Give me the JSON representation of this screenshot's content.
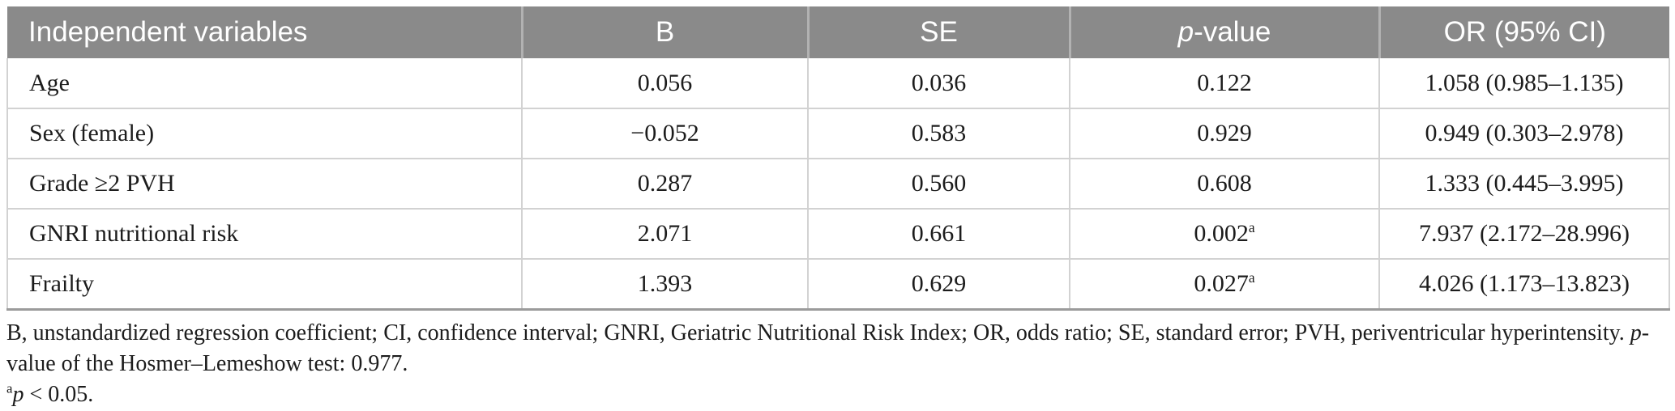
{
  "colors": {
    "header-bg": "#8a8a8a",
    "header-divider": "#b2b2b2",
    "cell-border": "#d2d2d2",
    "table-bottom-border": "#9b9b9b",
    "text": "#1c1c1c",
    "header-text": "#ffffff"
  },
  "table": {
    "header": {
      "variable": "Independent variables",
      "b": "B",
      "se": "SE",
      "p_italic": "p",
      "p_rest": "-value",
      "or_ci": "OR (95% CI)"
    },
    "rows": [
      {
        "variable": "Age",
        "b": "0.056",
        "se": "0.036",
        "p": "0.122",
        "p_sup": "",
        "or_ci": "1.058 (0.985–1.135)"
      },
      {
        "variable": "Sex (female)",
        "b": "−0.052",
        "se": "0.583",
        "p": "0.929",
        "p_sup": "",
        "or_ci": "0.949 (0.303–2.978)"
      },
      {
        "variable": "Grade ≥2 PVH",
        "b": "0.287",
        "se": "0.560",
        "p": "0.608",
        "p_sup": "",
        "or_ci": "1.333 (0.445–3.995)"
      },
      {
        "variable": "GNRI nutritional risk",
        "b": "2.071",
        "se": "0.661",
        "p": "0.002",
        "p_sup": "a",
        "or_ci": "7.937 (2.172–28.996)"
      },
      {
        "variable": "Frailty",
        "b": "1.393",
        "se": "0.629",
        "p": "0.027",
        "p_sup": "a",
        "or_ci": "4.026 (1.173–13.823)"
      }
    ]
  },
  "footnotes": {
    "abbreviations": "B, unstandardized regression coefficient; CI, confidence interval; GNRI, Geriatric Nutritional Risk Index; OR, odds ratio; SE, standard error; PVH, periventricular hyperintensity. ",
    "p_italic": "p",
    "hosmer_rest": "-value of the Hosmer–Lemeshow test: 0.977.",
    "sig_sup": "a",
    "sig_italic": "p",
    "sig_rest": " < 0.05."
  }
}
